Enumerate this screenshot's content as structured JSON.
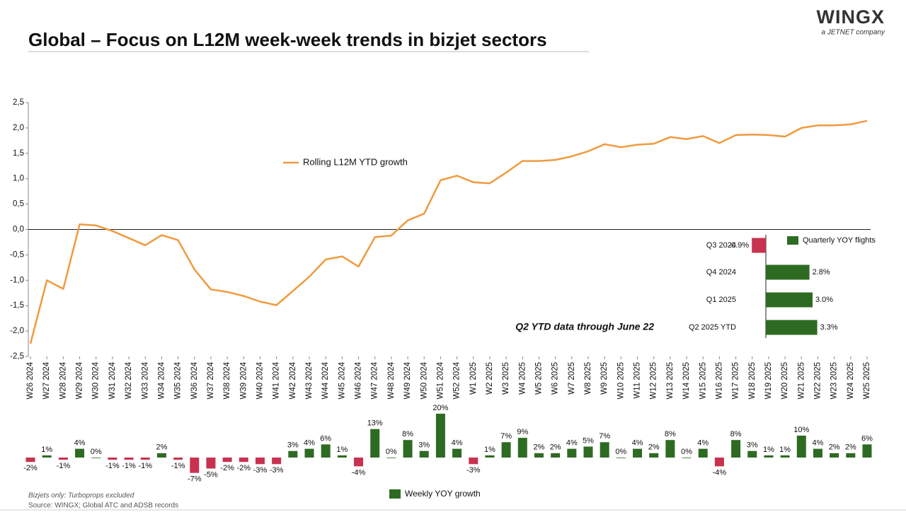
{
  "header": {
    "title": "Global – Focus on L12M week-week trends in bizjet sectors"
  },
  "logo": {
    "name": "WINGX",
    "tagline": "a JETNET company"
  },
  "footnotes": [
    "Bizjets only: Turboprops excluded",
    "Source: WINGX; Global ATC and ADSB records"
  ],
  "chart_data": [
    {
      "type": "line",
      "categories": [
        "W26 2024",
        "W27 2024",
        "W28 2024",
        "W29 2024",
        "W30 2024",
        "W31 2024",
        "W32 2024",
        "W33 2024",
        "W34 2024",
        "W35 2024",
        "W36 2024",
        "W37 2024",
        "W38 2024",
        "W39 2024",
        "W40 2024",
        "W41 2024",
        "W42 2024",
        "W43 2024",
        "W44 2024",
        "W45 2024",
        "W46 2024",
        "W47 2024",
        "W48 2024",
        "W49 2024",
        "W50 2024",
        "W51 2024",
        "W52 2024",
        "W1 2025",
        "W2 2025",
        "W3 2025",
        "W4 2025",
        "W5 2025",
        "W6 2025",
        "W7 2025",
        "W8 2025",
        "W9 2025",
        "W10 2025",
        "W11 2025",
        "W12 2025",
        "W13 2025",
        "W14 2025",
        "W15 2025",
        "W16 2025",
        "W17 2025",
        "W18 2025",
        "W19 2025",
        "W20 2025",
        "W21 2025",
        "W22 2025",
        "W23 2025",
        "W24 2025",
        "W25 2025"
      ],
      "series": [
        {
          "name": "Rolling L12M YTD growth",
          "color": "#f09a3e",
          "values": [
            -2.25,
            -1.0,
            -1.17,
            0.1,
            0.08,
            -0.03,
            -0.17,
            -0.31,
            -0.11,
            -0.21,
            -0.79,
            -1.18,
            -1.23,
            -1.31,
            -1.42,
            -1.49,
            -1.21,
            -0.93,
            -0.59,
            -0.53,
            -0.73,
            -0.15,
            -0.12,
            0.18,
            0.31,
            0.97,
            1.06,
            0.93,
            0.91,
            1.12,
            1.35,
            1.35,
            1.37,
            1.44,
            1.54,
            1.68,
            1.62,
            1.67,
            1.69,
            1.82,
            1.78,
            1.84,
            1.7,
            1.86,
            1.87,
            1.86,
            1.83,
            2.0,
            2.05,
            2.05,
            2.07,
            2.14
          ]
        }
      ],
      "ylim": [
        -2.5,
        2.5
      ],
      "yticks": [
        {
          "value": 2.5,
          "label": "2,5"
        },
        {
          "value": 2.0,
          "label": "2,0"
        },
        {
          "value": 1.5,
          "label": "1,5"
        },
        {
          "value": 1.0,
          "label": "1,0"
        },
        {
          "value": 0.5,
          "label": "0,5"
        },
        {
          "value": 0,
          "label": "0,0"
        },
        {
          "value": -0.5,
          "label": "-0,5"
        },
        {
          "value": -1.0,
          "label": "-1,0"
        },
        {
          "value": -1.5,
          "label": "-1,5"
        },
        {
          "value": -2.0,
          "label": "-2,0"
        },
        {
          "value": -2.5,
          "label": "-2,5"
        }
      ],
      "grid": false
    },
    {
      "type": "bar",
      "series": [
        {
          "name": "Weekly YOY growth",
          "color": "#2e6b22",
          "negative_color": "#c8324f",
          "values": [
            -2,
            1,
            -1,
            4,
            0,
            -1,
            -1,
            -1,
            2,
            -1,
            -7,
            -5,
            -2,
            -2,
            -3,
            -3,
            3,
            4,
            6,
            1,
            -4,
            13,
            0,
            8,
            3,
            20,
            4,
            -3,
            1,
            7,
            9,
            2,
            2,
            4,
            5,
            7,
            0,
            4,
            2,
            8,
            0,
            4,
            -4,
            8,
            3,
            1,
            1,
            10,
            4,
            2,
            2,
            6
          ],
          "value_labels": [
            "-2%",
            "1%",
            "-1%",
            "4%",
            "0%",
            "-1%",
            "-1%",
            "-1%",
            "2%",
            "-1%",
            "-7%",
            "-5%",
            "-2%",
            "-2%",
            "-3%",
            "-3%",
            "3%",
            "4%",
            "6%",
            "1%",
            "-4%",
            "13%",
            "0%",
            "8%",
            "3%",
            "20%",
            "4%",
            "-3%",
            "1%",
            "7%",
            "9%",
            "2%",
            "2%",
            "4%",
            "5%",
            "7%",
            "0%",
            "4%",
            "2%",
            "8%",
            "0%",
            "4%",
            "-4%",
            "8%",
            "3%",
            "1%",
            "1%",
            "10%",
            "4%",
            "2%",
            "2%",
            "6%"
          ]
        }
      ]
    },
    {
      "type": "hbar",
      "categories": [
        "Q3 2024",
        "Q4 2024",
        "Q1 2025",
        "Q2 2025 YTD"
      ],
      "series": [
        {
          "name": "Quarterly YOY flights",
          "color": "#2e6b22",
          "negative_color": "#c8324f",
          "values": [
            -0.9,
            2.8,
            3.0,
            3.3
          ],
          "value_labels": [
            "-0.9%",
            "2.8%",
            "3.0%",
            "3.3%"
          ]
        }
      ],
      "annotation": "Q2 YTD data through June 22"
    }
  ]
}
